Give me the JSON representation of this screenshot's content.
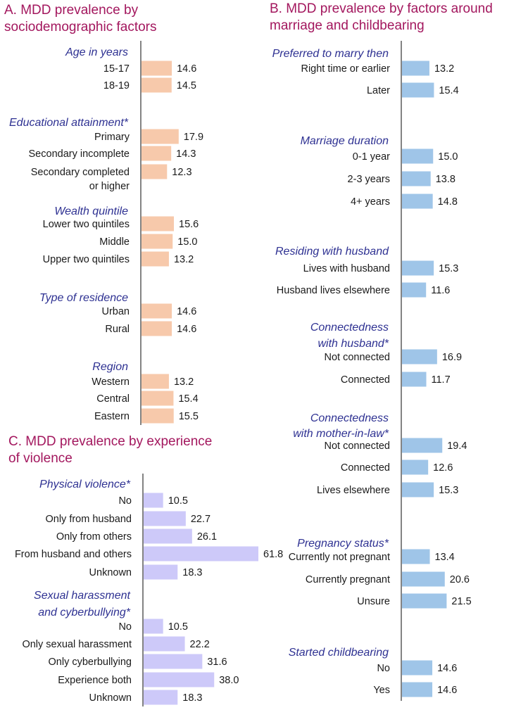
{
  "chart_data": [
    {
      "id": "A",
      "type": "bar",
      "orientation": "horizontal",
      "title_lines": [
        "A. MDD prevalence by",
        "sociodemographic factors"
      ],
      "color": "#f7c9ab",
      "xlim": [
        0,
        100
      ],
      "groups": [
        {
          "title_lines": [
            "Age in years"
          ],
          "categories": [
            {
              "label_lines": [
                "15-17"
              ],
              "value": 14.6,
              "value_label": "14.6"
            },
            {
              "label_lines": [
                "18-19"
              ],
              "value": 14.5,
              "value_label": "14.5"
            }
          ]
        },
        {
          "title_lines": [
            "Educational attainment*"
          ],
          "categories": [
            {
              "label_lines": [
                "Primary"
              ],
              "value": 17.9,
              "value_label": "17.9"
            },
            {
              "label_lines": [
                "Secondary incomplete"
              ],
              "value": 14.3,
              "value_label": "14.3"
            },
            {
              "label_lines": [
                "Secondary completed",
                "or higher"
              ],
              "value": 12.3,
              "value_label": "12.3"
            }
          ]
        },
        {
          "title_lines": [
            "Wealth quintile"
          ],
          "categories": [
            {
              "label_lines": [
                "Lower two quintiles"
              ],
              "value": 15.6,
              "value_label": "15.6"
            },
            {
              "label_lines": [
                "Middle"
              ],
              "value": 15.0,
              "value_label": "15.0"
            },
            {
              "label_lines": [
                "Upper two quintiles"
              ],
              "value": 13.2,
              "value_label": "13.2"
            }
          ]
        },
        {
          "title_lines": [
            "Type of residence"
          ],
          "categories": [
            {
              "label_lines": [
                "Urban"
              ],
              "value": 14.6,
              "value_label": "14.6"
            },
            {
              "label_lines": [
                "Rural"
              ],
              "value": 14.6,
              "value_label": "14.6"
            }
          ]
        },
        {
          "title_lines": [
            "Region"
          ],
          "categories": [
            {
              "label_lines": [
                "Western"
              ],
              "value": 13.2,
              "value_label": "13.2"
            },
            {
              "label_lines": [
                "Central"
              ],
              "value": 15.4,
              "value_label": "15.4"
            },
            {
              "label_lines": [
                "Eastern"
              ],
              "value": 15.5,
              "value_label": "15.5"
            }
          ]
        }
      ]
    },
    {
      "id": "B",
      "type": "bar",
      "orientation": "horizontal",
      "title_lines": [
        "B. MDD prevalence by factors around",
        "marriage and childbearing"
      ],
      "color": "#9fc5e8",
      "xlim": [
        0,
        100
      ],
      "groups": [
        {
          "title_lines": [
            "Preferred to marry then"
          ],
          "categories": [
            {
              "label_lines": [
                "Right time or earlier"
              ],
              "value": 13.2,
              "value_label": "13.2"
            },
            {
              "label_lines": [
                "Later"
              ],
              "value": 15.4,
              "value_label": "15.4"
            }
          ]
        },
        {
          "title_lines": [
            "Marriage duration"
          ],
          "categories": [
            {
              "label_lines": [
                "0-1 year"
              ],
              "value": 15.0,
              "value_label": "15.0"
            },
            {
              "label_lines": [
                "2-3 years"
              ],
              "value": 13.8,
              "value_label": "13.8"
            },
            {
              "label_lines": [
                "4+ years"
              ],
              "value": 14.8,
              "value_label": "14.8"
            }
          ]
        },
        {
          "title_lines": [
            "Residing with husband"
          ],
          "categories": [
            {
              "label_lines": [
                "Lives with husband"
              ],
              "value": 15.3,
              "value_label": "15.3"
            },
            {
              "label_lines": [
                "Husband lives elsewhere"
              ],
              "value": 11.6,
              "value_label": "11.6"
            }
          ]
        },
        {
          "title_lines": [
            "Connectedness",
            "with husband*"
          ],
          "categories": [
            {
              "label_lines": [
                "Not connected"
              ],
              "value": 16.9,
              "value_label": "16.9"
            },
            {
              "label_lines": [
                "Connected"
              ],
              "value": 11.7,
              "value_label": "11.7"
            }
          ]
        },
        {
          "title_lines": [
            "Connectedness",
            "with mother-in-law*"
          ],
          "categories": [
            {
              "label_lines": [
                "Not connected"
              ],
              "value": 19.4,
              "value_label": "19.4"
            },
            {
              "label_lines": [
                "Connected"
              ],
              "value": 12.6,
              "value_label": "12.6"
            },
            {
              "label_lines": [
                "Lives elsewhere"
              ],
              "value": 15.3,
              "value_label": "15.3"
            }
          ]
        },
        {
          "title_lines": [
            "Pregnancy status*"
          ],
          "categories": [
            {
              "label_lines": [
                "Currently not pregnant"
              ],
              "value": 13.4,
              "value_label": "13.4"
            },
            {
              "label_lines": [
                "Currently pregnant"
              ],
              "value": 20.6,
              "value_label": "20.6"
            },
            {
              "label_lines": [
                "Unsure"
              ],
              "value": 21.5,
              "value_label": "21.5"
            }
          ]
        },
        {
          "title_lines": [
            "Started childbearing"
          ],
          "categories": [
            {
              "label_lines": [
                "No"
              ],
              "value": 14.6,
              "value_label": "14.6"
            },
            {
              "label_lines": [
                "Yes"
              ],
              "value": 14.6,
              "value_label": "14.6"
            }
          ]
        }
      ]
    },
    {
      "id": "C",
      "type": "bar",
      "orientation": "horizontal",
      "title_lines": [
        "C. MDD prevalence by experience",
        "of violence"
      ],
      "color": "#cdc9f9",
      "xlim": [
        0,
        61.8
      ],
      "groups": [
        {
          "title_lines": [
            "Physical violence*"
          ],
          "categories": [
            {
              "label_lines": [
                "No"
              ],
              "value": 10.5,
              "value_label": "10.5"
            },
            {
              "label_lines": [
                "Only from husband"
              ],
              "value": 22.7,
              "value_label": "22.7"
            },
            {
              "label_lines": [
                "Only from others"
              ],
              "value": 26.1,
              "value_label": "26.1"
            },
            {
              "label_lines": [
                "From husband and others"
              ],
              "value": 61.8,
              "value_label": "61.8"
            },
            {
              "label_lines": [
                "Unknown"
              ],
              "value": 18.3,
              "value_label": "18.3"
            }
          ]
        },
        {
          "title_lines": [
            "Sexual harassment",
            "and cyberbullying*"
          ],
          "categories": [
            {
              "label_lines": [
                "No"
              ],
              "value": 10.5,
              "value_label": "10.5"
            },
            {
              "label_lines": [
                "Only sexual harassment"
              ],
              "value": 22.2,
              "value_label": "22.2"
            },
            {
              "label_lines": [
                "Only cyberbullying"
              ],
              "value": 31.6,
              "value_label": "31.6"
            },
            {
              "label_lines": [
                "Experience both"
              ],
              "value": 38.0,
              "value_label": "38.0"
            },
            {
              "label_lines": [
                "Unknown"
              ],
              "value": 18.3,
              "value_label": "18.3"
            }
          ]
        }
      ]
    }
  ]
}
